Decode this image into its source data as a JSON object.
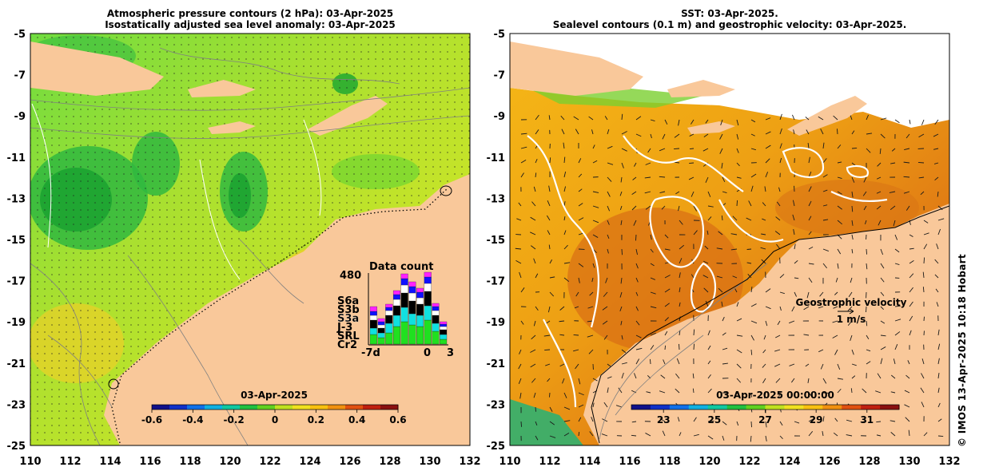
{
  "left_panel": {
    "title_line1": "Atmospheric pressure contours (2 hPa): 03-Apr-2025",
    "title_line2": "Isostatically adjusted sea level anomaly: 03-Apr-2025",
    "colorbar": {
      "label": "03-Apr-2025",
      "tick_labels": [
        "-0.6",
        "-0.4",
        "-0.2",
        "0",
        "0.2",
        "0.4",
        "0.6"
      ],
      "colors": [
        "#10108a",
        "#1030c8",
        "#1070e8",
        "#10b0e0",
        "#10c8a0",
        "#20c040",
        "#60d020",
        "#c0e020",
        "#f0e020",
        "#f8c010",
        "#f09010",
        "#e05010",
        "#c02010",
        "#8a1010"
      ]
    },
    "inset": {
      "title": "Data count",
      "ymax_label": "480",
      "x_labels": [
        "-7d",
        "0",
        "3"
      ],
      "satellites": [
        "S6a",
        "S3b",
        "S3a",
        "J-3",
        "SRL",
        "Cr2"
      ],
      "satellite_colors": [
        "#ff20ff",
        "#1010ff",
        "#ffffff",
        "#000000",
        "#10e0e0",
        "#20e020"
      ]
    }
  },
  "right_panel": {
    "title_line1": "SST: 03-Apr-2025.",
    "title_line2": "Sealevel contours (0.1 m) and geostrophic velocity: 03-Apr-2025.",
    "colorbar": {
      "label": "03-Apr-2025 00:00:00",
      "tick_labels": [
        "23",
        "25",
        "27",
        "29",
        "31"
      ],
      "colors": [
        "#10108a",
        "#1030c8",
        "#1070e8",
        "#10b0e0",
        "#10c8a0",
        "#20c040",
        "#60d020",
        "#c0e020",
        "#f0e020",
        "#f8c010",
        "#f09010",
        "#e05010",
        "#c02010",
        "#8a1010"
      ]
    },
    "legend_title": "Geostrophic velocity",
    "legend_scale": "1 m/s"
  },
  "axes": {
    "x_labels": [
      "110",
      "112",
      "114",
      "116",
      "118",
      "120",
      "122",
      "124",
      "126",
      "128",
      "130",
      "132"
    ],
    "y_labels": [
      "-5",
      "-7",
      "-9",
      "-11",
      "-13",
      "-15",
      "-17",
      "-19",
      "-21",
      "-23",
      "-25"
    ]
  },
  "credit": "© IMOS 13-Apr-2025 10:18 Hobart"
}
